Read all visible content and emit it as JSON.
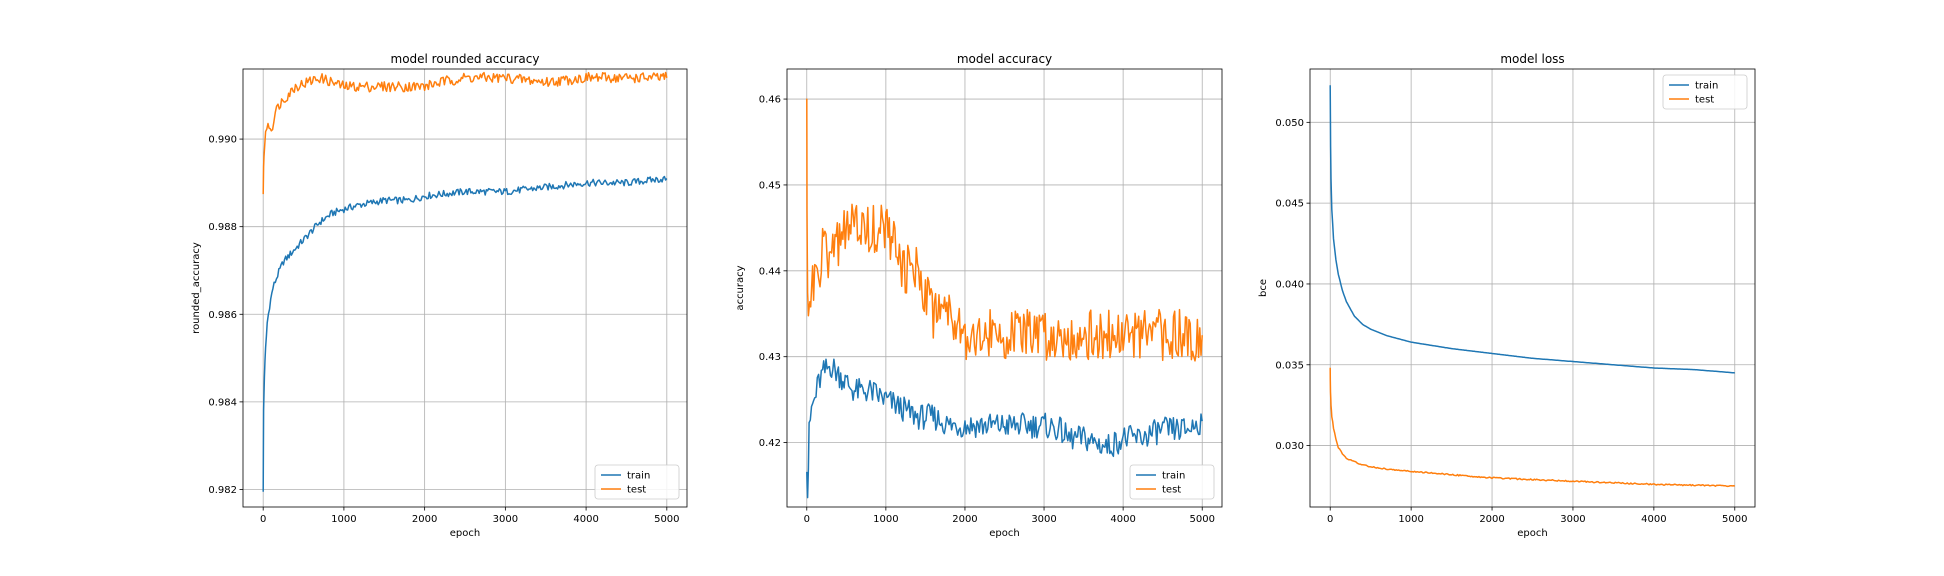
{
  "chart_data": [
    {
      "type": "line",
      "title": "model rounded accuracy",
      "xlabel": "epoch",
      "ylabel": "rounded_accuracy",
      "xlim": [
        -250,
        5250
      ],
      "ylim": [
        0.9816,
        0.9916
      ],
      "x_ticks": [
        0,
        1000,
        2000,
        3000,
        4000,
        5000
      ],
      "y_ticks": [
        0.982,
        0.984,
        0.986,
        0.988,
        0.99
      ],
      "y_tick_labels": [
        "0.982",
        "0.984",
        "0.986",
        "0.988",
        "0.990"
      ],
      "grid": true,
      "legend_position": "lower-right",
      "series": [
        {
          "name": "train",
          "color": "#1f77b4",
          "x": [
            0,
            5,
            15,
            30,
            50,
            80,
            120,
            180,
            250,
            350,
            450,
            550,
            700,
            850,
            1000,
            1200,
            1500,
            1800,
            2000,
            2500,
            3000,
            3500,
            4000,
            4500,
            5000
          ],
          "y": [
            0.982,
            0.9838,
            0.9846,
            0.9852,
            0.9858,
            0.9862,
            0.9866,
            0.9869,
            0.9872,
            0.9874,
            0.9876,
            0.9878,
            0.9881,
            0.9883,
            0.9884,
            0.9885,
            0.9886,
            0.9886,
            0.9887,
            0.9888,
            0.9888,
            0.9889,
            0.989,
            0.989,
            0.9891
          ],
          "noise": 8e-05
        },
        {
          "name": "test",
          "color": "#ff7f0e",
          "x": [
            0,
            10,
            30,
            60,
            100,
            150,
            200,
            300,
            400,
            550,
            700,
            850,
            1000,
            1300,
            1500,
            2000,
            2200,
            2500,
            3000,
            3500,
            4000,
            4500,
            5000
          ],
          "y": [
            0.9888,
            0.9897,
            0.9901,
            0.9904,
            0.9902,
            0.9906,
            0.9908,
            0.991,
            0.9912,
            0.9913,
            0.9914,
            0.9913,
            0.9912,
            0.9912,
            0.9912,
            0.9912,
            0.9913,
            0.9914,
            0.9914,
            0.9913,
            0.9914,
            0.9914,
            0.9914
          ],
          "noise": 0.00012
        }
      ]
    },
    {
      "type": "line",
      "title": "model accuracy",
      "xlabel": "epoch",
      "ylabel": "accuracy",
      "xlim": [
        -250,
        5250
      ],
      "ylim": [
        0.4125,
        0.4635
      ],
      "x_ticks": [
        0,
        1000,
        2000,
        3000,
        4000,
        5000
      ],
      "y_ticks": [
        0.42,
        0.43,
        0.44,
        0.45,
        0.46
      ],
      "y_tick_labels": [
        "0.42",
        "0.43",
        "0.44",
        "0.45",
        "0.46"
      ],
      "grid": true,
      "legend_position": "lower-right",
      "series": [
        {
          "name": "train",
          "color": "#1f77b4",
          "x": [
            0,
            10,
            30,
            60,
            100,
            150,
            200,
            300,
            400,
            500,
            600,
            800,
            1000,
            1200,
            1400,
            1600,
            1800,
            2000,
            2500,
            3000,
            3200,
            3300,
            3500,
            3800,
            4000,
            4200,
            4500,
            4800,
            5000
          ],
          "y": [
            0.418,
            0.414,
            0.421,
            0.424,
            0.425,
            0.427,
            0.428,
            0.429,
            0.428,
            0.427,
            0.426,
            0.426,
            0.425,
            0.424,
            0.423,
            0.423,
            0.422,
            0.422,
            0.422,
            0.422,
            0.4215,
            0.4205,
            0.4205,
            0.4195,
            0.4205,
            0.4205,
            0.4215,
            0.4215,
            0.4225
          ],
          "noise": 0.0015
        },
        {
          "name": "test",
          "color": "#ff7f0e",
          "x": [
            0,
            3,
            10,
            20,
            40,
            60,
            100,
            150,
            200,
            300,
            400,
            500,
            600,
            700,
            800,
            900,
            1000,
            1100,
            1200,
            1400,
            1500,
            1600,
            1700,
            1800,
            1900,
            2000,
            2500,
            3000,
            4000,
            5000
          ],
          "y": [
            0.462,
            0.445,
            0.44,
            0.437,
            0.435,
            0.437,
            0.44,
            0.44,
            0.442,
            0.442,
            0.443,
            0.445,
            0.445,
            0.445,
            0.445,
            0.445,
            0.445,
            0.443,
            0.44,
            0.44,
            0.438,
            0.435,
            0.437,
            0.435,
            0.435,
            0.4325,
            0.4325,
            0.4325,
            0.4325,
            0.4325
          ],
          "noise": 0.003
        }
      ]
    },
    {
      "type": "line",
      "title": "model loss",
      "xlabel": "epoch",
      "ylabel": "bce",
      "xlim": [
        -250,
        5250
      ],
      "ylim": [
        0.0262,
        0.0533
      ],
      "x_ticks": [
        0,
        1000,
        2000,
        3000,
        4000,
        5000
      ],
      "y_ticks": [
        0.03,
        0.035,
        0.04,
        0.045,
        0.05
      ],
      "y_tick_labels": [
        "0.030",
        "0.035",
        "0.040",
        "0.045",
        "0.050"
      ],
      "grid": true,
      "legend_position": "upper-right",
      "series": [
        {
          "name": "train",
          "color": "#1f77b4",
          "x": [
            0,
            2,
            5,
            10,
            20,
            40,
            70,
            100,
            150,
            200,
            300,
            400,
            500,
            700,
            1000,
            1500,
            2000,
            2500,
            3000,
            3500,
            4000,
            4500,
            5000
          ],
          "y": [
            0.0523,
            0.0505,
            0.0485,
            0.0465,
            0.0446,
            0.0428,
            0.0415,
            0.0406,
            0.0396,
            0.0389,
            0.038,
            0.0375,
            0.0372,
            0.0368,
            0.0364,
            0.036,
            0.0357,
            0.0354,
            0.0352,
            0.035,
            0.0348,
            0.0347,
            0.0345
          ],
          "noise": 0
        },
        {
          "name": "test",
          "color": "#ff7f0e",
          "x": [
            0,
            3,
            10,
            20,
            40,
            70,
            100,
            150,
            200,
            300,
            400,
            600,
            800,
            1000,
            1500,
            2000,
            3000,
            4000,
            5000
          ],
          "y": [
            0.0348,
            0.0333,
            0.0325,
            0.0318,
            0.0311,
            0.0304,
            0.0299,
            0.0295,
            0.0292,
            0.029,
            0.0288,
            0.0286,
            0.0285,
            0.0284,
            0.0282,
            0.028,
            0.0278,
            0.0276,
            0.0275
          ],
          "noise": 4e-05
        }
      ]
    }
  ]
}
